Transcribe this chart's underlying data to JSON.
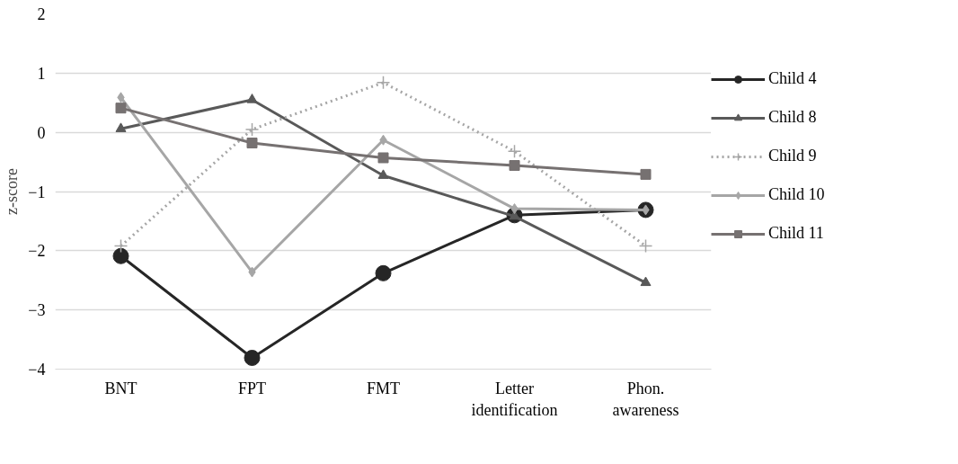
{
  "chart_data": {
    "type": "line",
    "ylabel": "z-score",
    "categories": [
      "BNT",
      "FPT",
      "FMT",
      "Letter identification",
      "Phon. awareness"
    ],
    "ylim": [
      -4,
      2
    ],
    "yticks": [
      -4,
      -3,
      -2,
      -1,
      0,
      1,
      2
    ],
    "grid": "y",
    "legend": "right",
    "series": [
      {
        "name": "Child 4",
        "color": "#262626",
        "marker": "circle",
        "line_style": "solid",
        "values": [
          -2.09,
          -3.81,
          -2.38,
          -1.4,
          -1.31
        ]
      },
      {
        "name": "Child 8",
        "color": "#595959",
        "marker": "triangle",
        "line_style": "solid",
        "values": [
          0.06,
          0.55,
          -0.73,
          -1.42,
          -2.54
        ]
      },
      {
        "name": "Child 9",
        "color": "#a6a6a6",
        "marker": "cross",
        "line_style": "dotted",
        "values": [
          -1.92,
          0.05,
          0.84,
          -0.32,
          -1.92
        ]
      },
      {
        "name": "Child 10",
        "color": "#a6a6a6",
        "marker": "diamond",
        "line_style": "solid",
        "values": [
          0.59,
          -2.36,
          -0.13,
          -1.29,
          -1.31
        ]
      },
      {
        "name": "Child 11",
        "color": "#767171",
        "marker": "square",
        "line_style": "solid",
        "values": [
          0.41,
          -0.18,
          -0.43,
          -0.56,
          -0.71
        ]
      }
    ]
  }
}
